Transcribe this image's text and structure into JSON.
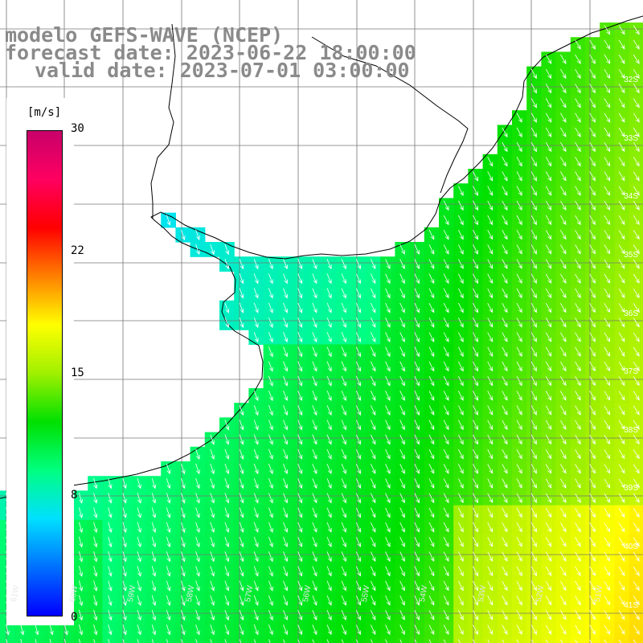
{
  "title": {
    "model": "modelo GEFS-WAVE (NCEP)",
    "forecast": "forecast date: 2023-06-22 18:00:00",
    "valid": "valid date: 2023-07-01 03:00:00"
  },
  "colorbar": {
    "unit": "[m/s]",
    "ticks": [
      "30",
      "22",
      "15",
      "8",
      "0"
    ],
    "tick_values": [
      30,
      22,
      15,
      8,
      0
    ],
    "colors": [
      "#0000ff",
      "#0070ff",
      "#00e0ff",
      "#00ff80",
      "#00e000",
      "#a0f000",
      "#ffff00",
      "#ff8000",
      "#ff0000",
      "#ff0060",
      "#c8006a"
    ]
  },
  "lat_labels": [
    "32S",
    "33S",
    "34S",
    "35S",
    "36S",
    "37S",
    "38S",
    "39S",
    "40S",
    "41S"
  ],
  "lon_labels": [
    "61W",
    "60W",
    "59W",
    "58W",
    "57W",
    "56W",
    "55W",
    "54W",
    "53W",
    "52W",
    "51W"
  ],
  "field": {
    "variable": "wind speed",
    "arrow_direction": "southward / south-southeast",
    "colors": {
      "land": "#ffffff",
      "coast": "#000000",
      "grid": "#777777",
      "arrows": "#ffffff"
    }
  }
}
